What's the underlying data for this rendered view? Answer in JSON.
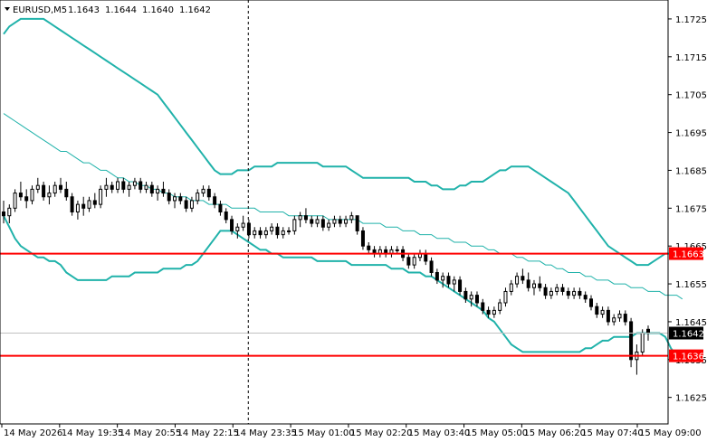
{
  "symbol_info": {
    "symbol": "EURUSD,M5",
    "open": "1.1643",
    "high": "1.1644",
    "low": "1.1640",
    "close": "1.1642"
  },
  "colors": {
    "band": "#20b2aa",
    "level": "#ff0000",
    "bull": "#000000",
    "bear": "#000000",
    "current_tag": "#000000",
    "level_tag": "#ff0000"
  },
  "chart_data": {
    "type": "candlestick",
    "symbol": "EURUSD",
    "timeframe": "M5",
    "y_ticks": [
      "1.1725",
      "1.1715",
      "1.1705",
      "1.1695",
      "1.1685",
      "1.1675",
      "1.1665",
      "1.1655",
      "1.1645",
      "1.1635",
      "1.1625"
    ],
    "x_ticks": [
      "14 May 2026",
      "14 May 19:35",
      "14 May 20:55",
      "14 May 22:15",
      "14 May 23:35",
      "15 May 01:00",
      "15 May 02:20",
      "15 May 03:40",
      "15 May 05:00",
      "15 May 06:20",
      "15 May 07:40",
      "15 May 09:00"
    ],
    "ylim": [
      1.1618,
      1.173
    ],
    "horizontal_levels": [
      {
        "value": 1.1663,
        "label": "1.1663"
      },
      {
        "value": 1.1636,
        "label": "1.1636"
      }
    ],
    "current_price": {
      "value": 1.1642,
      "label": "1.1642"
    },
    "vertical_marker": "14 May 23:35",
    "candles": [
      [
        1.1674,
        1.1677,
        1.1671,
        1.1673
      ],
      [
        1.1673,
        1.1676,
        1.1671,
        1.1675
      ],
      [
        1.1675,
        1.168,
        1.1674,
        1.1679
      ],
      [
        1.1679,
        1.1682,
        1.1677,
        1.1678
      ],
      [
        1.1678,
        1.168,
        1.1675,
        1.1677
      ],
      [
        1.1677,
        1.1681,
        1.1676,
        1.168
      ],
      [
        1.168,
        1.1683,
        1.1679,
        1.1681
      ],
      [
        1.1681,
        1.1682,
        1.1677,
        1.1678
      ],
      [
        1.1678,
        1.1681,
        1.1676,
        1.1679
      ],
      [
        1.1679,
        1.1682,
        1.1678,
        1.1681
      ],
      [
        1.1681,
        1.1683,
        1.1679,
        1.168
      ],
      [
        1.168,
        1.1682,
        1.1677,
        1.1678
      ],
      [
        1.1678,
        1.1679,
        1.1673,
        1.1674
      ],
      [
        1.1674,
        1.1677,
        1.1672,
        1.1676
      ],
      [
        1.1676,
        1.1678,
        1.1673,
        1.1675
      ],
      [
        1.1675,
        1.1678,
        1.1674,
        1.1677
      ],
      [
        1.1677,
        1.1679,
        1.1675,
        1.1676
      ],
      [
        1.1676,
        1.1681,
        1.1675,
        1.168
      ],
      [
        1.168,
        1.1683,
        1.1678,
        1.1681
      ],
      [
        1.1681,
        1.1682,
        1.1679,
        1.168
      ],
      [
        1.168,
        1.1683,
        1.1679,
        1.1682
      ],
      [
        1.1682,
        1.1683,
        1.1679,
        1.168
      ],
      [
        1.168,
        1.1682,
        1.1678,
        1.1681
      ],
      [
        1.1681,
        1.1683,
        1.168,
        1.1682
      ],
      [
        1.1682,
        1.1683,
        1.1679,
        1.168
      ],
      [
        1.168,
        1.1682,
        1.1679,
        1.1681
      ],
      [
        1.1681,
        1.1682,
        1.1678,
        1.1679
      ],
      [
        1.1679,
        1.1681,
        1.1677,
        1.168
      ],
      [
        1.168,
        1.1682,
        1.1678,
        1.1679
      ],
      [
        1.1679,
        1.168,
        1.1676,
        1.1677
      ],
      [
        1.1677,
        1.1679,
        1.1675,
        1.1678
      ],
      [
        1.1678,
        1.1679,
        1.1676,
        1.1677
      ],
      [
        1.1677,
        1.1678,
        1.1674,
        1.1675
      ],
      [
        1.1675,
        1.1678,
        1.1674,
        1.1677
      ],
      [
        1.1677,
        1.168,
        1.1676,
        1.1679
      ],
      [
        1.1679,
        1.1681,
        1.1678,
        1.168
      ],
      [
        1.168,
        1.1681,
        1.1677,
        1.1678
      ],
      [
        1.1678,
        1.1679,
        1.1675,
        1.1676
      ],
      [
        1.1676,
        1.1677,
        1.1673,
        1.1674
      ],
      [
        1.1674,
        1.1675,
        1.1671,
        1.1672
      ],
      [
        1.1672,
        1.1673,
        1.1668,
        1.1669
      ],
      [
        1.1669,
        1.1671,
        1.1667,
        1.167
      ],
      [
        1.167,
        1.1673,
        1.1669,
        1.1671
      ],
      [
        1.1671,
        1.1672,
        1.1667,
        1.1668
      ],
      [
        1.1668,
        1.167,
        1.1667,
        1.1669
      ],
      [
        1.1669,
        1.167,
        1.1667,
        1.1668
      ],
      [
        1.1668,
        1.167,
        1.1667,
        1.1669
      ],
      [
        1.1669,
        1.1671,
        1.1668,
        1.167
      ],
      [
        1.167,
        1.1671,
        1.1667,
        1.1668
      ],
      [
        1.1668,
        1.167,
        1.1667,
        1.1669
      ],
      [
        1.1669,
        1.167,
        1.1668,
        1.1669
      ],
      [
        1.1669,
        1.1673,
        1.1668,
        1.1672
      ],
      [
        1.1672,
        1.1674,
        1.167,
        1.1673
      ],
      [
        1.1673,
        1.1675,
        1.1671,
        1.1672
      ],
      [
        1.1672,
        1.1673,
        1.167,
        1.1671
      ],
      [
        1.1671,
        1.1673,
        1.167,
        1.1672
      ],
      [
        1.1672,
        1.1673,
        1.1669,
        1.167
      ],
      [
        1.167,
        1.1672,
        1.1669,
        1.1671
      ],
      [
        1.1671,
        1.1673,
        1.167,
        1.1672
      ],
      [
        1.1672,
        1.1673,
        1.167,
        1.1671
      ],
      [
        1.1671,
        1.1673,
        1.167,
        1.1672
      ],
      [
        1.1672,
        1.1674,
        1.1671,
        1.1673
      ],
      [
        1.1673,
        1.1673,
        1.1668,
        1.1669
      ],
      [
        1.1669,
        1.167,
        1.1664,
        1.1665
      ],
      [
        1.1665,
        1.1666,
        1.1663,
        1.1664
      ],
      [
        1.1664,
        1.1665,
        1.1662,
        1.1663
      ],
      [
        1.1663,
        1.1665,
        1.1662,
        1.1664
      ],
      [
        1.1664,
        1.1665,
        1.1662,
        1.1663
      ],
      [
        1.1663,
        1.1665,
        1.1662,
        1.1664
      ],
      [
        1.1664,
        1.1665,
        1.1663,
        1.1664
      ],
      [
        1.1664,
        1.1665,
        1.1661,
        1.1662
      ],
      [
        1.1662,
        1.1663,
        1.1659,
        1.166
      ],
      [
        1.166,
        1.1663,
        1.1659,
        1.1662
      ],
      [
        1.1662,
        1.1664,
        1.1661,
        1.1663
      ],
      [
        1.1663,
        1.1664,
        1.166,
        1.1661
      ],
      [
        1.1661,
        1.1662,
        1.1657,
        1.1658
      ],
      [
        1.1658,
        1.1659,
        1.1655,
        1.1656
      ],
      [
        1.1656,
        1.1658,
        1.1654,
        1.1657
      ],
      [
        1.1657,
        1.1658,
        1.1654,
        1.1655
      ],
      [
        1.1655,
        1.1657,
        1.1653,
        1.1656
      ],
      [
        1.1656,
        1.1657,
        1.1652,
        1.1653
      ],
      [
        1.1653,
        1.1654,
        1.165,
        1.1651
      ],
      [
        1.1651,
        1.1653,
        1.1649,
        1.1652
      ],
      [
        1.1652,
        1.1653,
        1.1649,
        1.165
      ],
      [
        1.165,
        1.1651,
        1.1647,
        1.1648
      ],
      [
        1.1648,
        1.1649,
        1.1646,
        1.1647
      ],
      [
        1.1647,
        1.1649,
        1.1646,
        1.1648
      ],
      [
        1.1648,
        1.1651,
        1.1647,
        1.165
      ],
      [
        1.165,
        1.1654,
        1.1649,
        1.1653
      ],
      [
        1.1653,
        1.1656,
        1.1652,
        1.1655
      ],
      [
        1.1655,
        1.1658,
        1.1654,
        1.1657
      ],
      [
        1.1657,
        1.1659,
        1.1655,
        1.1656
      ],
      [
        1.1656,
        1.1658,
        1.1653,
        1.1654
      ],
      [
        1.1654,
        1.1656,
        1.1652,
        1.1655
      ],
      [
        1.1655,
        1.1657,
        1.1653,
        1.1654
      ],
      [
        1.1654,
        1.1655,
        1.1651,
        1.1652
      ],
      [
        1.1652,
        1.1654,
        1.1651,
        1.1653
      ],
      [
        1.1653,
        1.1655,
        1.1652,
        1.1654
      ],
      [
        1.1654,
        1.1655,
        1.1652,
        1.1653
      ],
      [
        1.1653,
        1.1654,
        1.1651,
        1.1652
      ],
      [
        1.1652,
        1.1654,
        1.1651,
        1.1653
      ],
      [
        1.1653,
        1.1654,
        1.1651,
        1.1652
      ],
      [
        1.1652,
        1.1653,
        1.165,
        1.1651
      ],
      [
        1.1651,
        1.1652,
        1.1648,
        1.1649
      ],
      [
        1.1649,
        1.165,
        1.1646,
        1.1647
      ],
      [
        1.1647,
        1.1649,
        1.1646,
        1.1648
      ],
      [
        1.1648,
        1.1649,
        1.1644,
        1.1645
      ],
      [
        1.1645,
        1.1647,
        1.1644,
        1.1646
      ],
      [
        1.1646,
        1.1648,
        1.1645,
        1.1647
      ],
      [
        1.1647,
        1.1648,
        1.1644,
        1.1645
      ],
      [
        1.1645,
        1.1646,
        1.1633,
        1.1635
      ],
      [
        1.1635,
        1.1639,
        1.1631,
        1.1637
      ],
      [
        1.1637,
        1.1643,
        1.1636,
        1.1642
      ],
      [
        1.1643,
        1.1644,
        1.164,
        1.1642
      ]
    ],
    "upper_band": [
      1.1721,
      1.1723,
      1.1724,
      1.1725,
      1.1725,
      1.1725,
      1.1725,
      1.1725,
      1.1724,
      1.1723,
      1.1722,
      1.1721,
      1.172,
      1.1719,
      1.1718,
      1.1717,
      1.1716,
      1.1715,
      1.1714,
      1.1713,
      1.1712,
      1.1711,
      1.171,
      1.1709,
      1.1708,
      1.1707,
      1.1706,
      1.1705,
      1.1703,
      1.1701,
      1.1699,
      1.1697,
      1.1695,
      1.1693,
      1.1691,
      1.1689,
      1.1687,
      1.1685,
      1.1684,
      1.1684,
      1.1684,
      1.1685,
      1.1685,
      1.1685,
      1.1686,
      1.1686,
      1.1686,
      1.1686,
      1.1687,
      1.1687,
      1.1687,
      1.1687,
      1.1687,
      1.1687,
      1.1687,
      1.1687,
      1.1686,
      1.1686,
      1.1686,
      1.1686,
      1.1686,
      1.1685,
      1.1684,
      1.1683,
      1.1683,
      1.1683,
      1.1683,
      1.1683,
      1.1683,
      1.1683,
      1.1683,
      1.1683,
      1.1682,
      1.1682,
      1.1682,
      1.1681,
      1.1681,
      1.168,
      1.168,
      1.168,
      1.1681,
      1.1681,
      1.1682,
      1.1682,
      1.1682,
      1.1683,
      1.1684,
      1.1685,
      1.1685,
      1.1686,
      1.1686,
      1.1686,
      1.1686,
      1.1685,
      1.1684,
      1.1683,
      1.1682,
      1.1681,
      1.168,
      1.1679,
      1.1677,
      1.1675,
      1.1673,
      1.1671,
      1.1669,
      1.1667,
      1.1665,
      1.1664,
      1.1663,
      1.1662,
      1.1661,
      1.166,
      1.166,
      1.166,
      1.1661,
      1.1662,
      1.1663,
      1.1663,
      1.1663
    ],
    "middle_line": [
      1.17,
      1.1699,
      1.1698,
      1.1697,
      1.1696,
      1.1695,
      1.1694,
      1.1693,
      1.1692,
      1.1691,
      1.169,
      1.169,
      1.1689,
      1.1688,
      1.1687,
      1.1687,
      1.1686,
      1.1685,
      1.1685,
      1.1684,
      1.1683,
      1.1683,
      1.1682,
      1.1682,
      1.1681,
      1.1681,
      1.168,
      1.168,
      1.1679,
      1.1679,
      1.1678,
      1.1678,
      1.1678,
      1.1677,
      1.1677,
      1.1677,
      1.1676,
      1.1676,
      1.1676,
      1.1676,
      1.1675,
      1.1675,
      1.1675,
      1.1675,
      1.1675,
      1.1674,
      1.1674,
      1.1674,
      1.1674,
      1.1674,
      1.1673,
      1.1673,
      1.1673,
      1.1673,
      1.1673,
      1.1673,
      1.1673,
      1.1672,
      1.1672,
      1.1672,
      1.1672,
      1.1672,
      1.1672,
      1.1671,
      1.1671,
      1.1671,
      1.1671,
      1.167,
      1.167,
      1.167,
      1.1669,
      1.1669,
      1.1669,
      1.1668,
      1.1668,
      1.1668,
      1.1667,
      1.1667,
      1.1667,
      1.1666,
      1.1666,
      1.1666,
      1.1665,
      1.1665,
      1.1665,
      1.1664,
      1.1664,
      1.1663,
      1.1663,
      1.1663,
      1.1662,
      1.1662,
      1.1661,
      1.1661,
      1.1661,
      1.166,
      1.166,
      1.1659,
      1.1659,
      1.1658,
      1.1658,
      1.1658,
      1.1657,
      1.1657,
      1.1656,
      1.1656,
      1.1656,
      1.1655,
      1.1655,
      1.1655,
      1.1654,
      1.1654,
      1.1654,
      1.1653,
      1.1653,
      1.1653,
      1.1652,
      1.1652,
      1.1652,
      1.1651
    ],
    "lower_band": [
      1.1673,
      1.167,
      1.1667,
      1.1665,
      1.1664,
      1.1663,
      1.1662,
      1.1662,
      1.1661,
      1.1661,
      1.166,
      1.1658,
      1.1657,
      1.1656,
      1.1656,
      1.1656,
      1.1656,
      1.1656,
      1.1656,
      1.1657,
      1.1657,
      1.1657,
      1.1657,
      1.1658,
      1.1658,
      1.1658,
      1.1658,
      1.1658,
      1.1659,
      1.1659,
      1.1659,
      1.1659,
      1.166,
      1.166,
      1.1661,
      1.1663,
      1.1665,
      1.1667,
      1.1669,
      1.1669,
      1.1669,
      1.1668,
      1.1667,
      1.1666,
      1.1665,
      1.1664,
      1.1664,
      1.1663,
      1.1663,
      1.1662,
      1.1662,
      1.1662,
      1.1662,
      1.1662,
      1.1662,
      1.1661,
      1.1661,
      1.1661,
      1.1661,
      1.1661,
      1.1661,
      1.166,
      1.166,
      1.166,
      1.166,
      1.166,
      1.166,
      1.166,
      1.1659,
      1.1659,
      1.1659,
      1.1658,
      1.1658,
      1.1658,
      1.1657,
      1.1657,
      1.1656,
      1.1655,
      1.1654,
      1.1653,
      1.1652,
      1.1651,
      1.165,
      1.1649,
      1.1648,
      1.1646,
      1.1645,
      1.1643,
      1.1641,
      1.1639,
      1.1638,
      1.1637,
      1.1637,
      1.1637,
      1.1637,
      1.1637,
      1.1637,
      1.1637,
      1.1637,
      1.1637,
      1.1637,
      1.1637,
      1.1638,
      1.1638,
      1.1639,
      1.164,
      1.164,
      1.1641,
      1.1641,
      1.1641,
      1.1641,
      1.1642,
      1.1642,
      1.1642,
      1.1642,
      1.1642,
      1.1641,
      1.1638,
      1.1636,
      1.1636
    ]
  }
}
